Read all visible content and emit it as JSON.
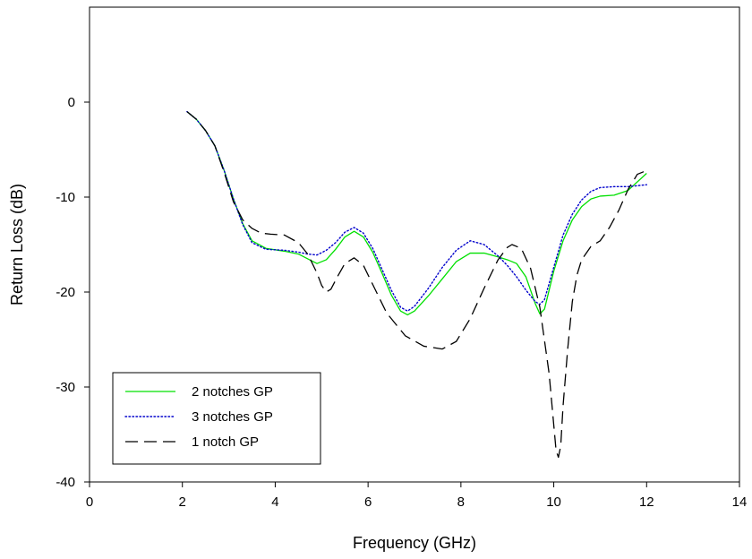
{
  "chart_data": {
    "type": "line",
    "title": "",
    "xlabel": "Frequency (GHz)",
    "ylabel": "Return Loss (dB)",
    "xlim": [
      0,
      14
    ],
    "ylim": [
      -40,
      10
    ],
    "xticks": [
      0,
      2,
      4,
      6,
      8,
      10,
      12,
      14
    ],
    "yticks": [
      -40,
      -30,
      -20,
      -10,
      0
    ],
    "grid": false,
    "legend_position": "bottom-left",
    "series": [
      {
        "name": "2 notches GP",
        "color": "#00e000",
        "style": "solid",
        "x": [
          2.1,
          2.3,
          2.5,
          2.7,
          2.9,
          3.1,
          3.3,
          3.5,
          3.8,
          4.2,
          4.5,
          4.7,
          4.9,
          5.1,
          5.3,
          5.5,
          5.7,
          5.9,
          6.1,
          6.3,
          6.5,
          6.7,
          6.85,
          7.0,
          7.3,
          7.6,
          7.9,
          8.2,
          8.5,
          8.8,
          9.0,
          9.2,
          9.4,
          9.6,
          9.7,
          9.8,
          10.0,
          10.2,
          10.4,
          10.6,
          10.8,
          11.0,
          11.3,
          11.6,
          12.0
        ],
        "y": [
          -1.0,
          -1.8,
          -3.0,
          -4.6,
          -7.2,
          -10.2,
          -12.8,
          -14.6,
          -15.4,
          -15.7,
          -16.0,
          -16.5,
          -17.0,
          -16.6,
          -15.5,
          -14.2,
          -13.6,
          -14.2,
          -15.8,
          -18.0,
          -20.3,
          -22.0,
          -22.4,
          -22.0,
          -20.4,
          -18.6,
          -16.8,
          -15.9,
          -15.9,
          -16.3,
          -16.6,
          -17.0,
          -18.4,
          -21.2,
          -22.3,
          -21.8,
          -17.8,
          -14.6,
          -12.4,
          -11.0,
          -10.2,
          -9.9,
          -9.8,
          -9.3,
          -7.5
        ]
      },
      {
        "name": "3 notches GP",
        "color": "#0000cc",
        "style": "dotted",
        "x": [
          2.1,
          2.3,
          2.5,
          2.7,
          2.9,
          3.1,
          3.3,
          3.5,
          3.8,
          4.2,
          4.5,
          4.7,
          4.9,
          5.1,
          5.3,
          5.5,
          5.7,
          5.9,
          6.1,
          6.3,
          6.5,
          6.7,
          6.85,
          7.0,
          7.3,
          7.6,
          7.9,
          8.2,
          8.5,
          8.8,
          9.0,
          9.2,
          9.4,
          9.6,
          9.7,
          9.8,
          10.0,
          10.2,
          10.4,
          10.6,
          10.8,
          11.0,
          11.3,
          11.6,
          12.0
        ],
        "y": [
          -1.0,
          -1.8,
          -3.0,
          -4.6,
          -7.2,
          -10.2,
          -12.9,
          -14.8,
          -15.5,
          -15.6,
          -15.8,
          -16.0,
          -16.1,
          -15.6,
          -14.8,
          -13.7,
          -13.2,
          -13.8,
          -15.4,
          -17.6,
          -19.8,
          -21.6,
          -22.0,
          -21.5,
          -19.6,
          -17.4,
          -15.6,
          -14.6,
          -15.0,
          -16.2,
          -17.2,
          -18.4,
          -19.8,
          -21.0,
          -21.3,
          -20.8,
          -17.4,
          -14.0,
          -11.8,
          -10.3,
          -9.4,
          -9.0,
          -8.9,
          -8.9,
          -8.7
        ]
      },
      {
        "name": "1 notch GP",
        "color": "#000000",
        "style": "dashed",
        "x": [
          2.1,
          2.3,
          2.5,
          2.7,
          2.9,
          3.1,
          3.3,
          3.5,
          3.7,
          3.9,
          4.2,
          4.5,
          4.7,
          4.9,
          5.0,
          5.1,
          5.2,
          5.35,
          5.5,
          5.7,
          5.9,
          6.1,
          6.4,
          6.8,
          7.2,
          7.6,
          7.9,
          8.2,
          8.5,
          8.8,
          9.0,
          9.1,
          9.3,
          9.5,
          9.7,
          9.9,
          10.0,
          10.05,
          10.1,
          10.15,
          10.2,
          10.3,
          10.4,
          10.5,
          10.6,
          10.8,
          11.0,
          11.2,
          11.4,
          11.6,
          11.8,
          12.0
        ],
        "y": [
          -1.0,
          -1.8,
          -3.0,
          -4.6,
          -7.4,
          -10.5,
          -12.4,
          -13.3,
          -13.8,
          -13.9,
          -14.0,
          -14.8,
          -16.0,
          -18.0,
          -19.3,
          -20.0,
          -19.7,
          -18.3,
          -17.0,
          -16.4,
          -17.2,
          -19.2,
          -22.2,
          -24.6,
          -25.7,
          -26.0,
          -25.2,
          -22.8,
          -19.6,
          -16.6,
          -15.3,
          -15.0,
          -15.4,
          -17.5,
          -21.6,
          -28.6,
          -34.0,
          -36.7,
          -37.4,
          -36.2,
          -32.0,
          -26.0,
          -21.0,
          -18.2,
          -16.6,
          -15.2,
          -14.6,
          -13.2,
          -11.4,
          -9.2,
          -7.6,
          -7.2
        ]
      }
    ]
  }
}
